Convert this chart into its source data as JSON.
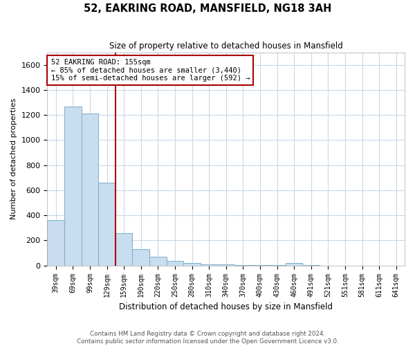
{
  "title": "52, EAKRING ROAD, MANSFIELD, NG18 3AH",
  "subtitle": "Size of property relative to detached houses in Mansfield",
  "xlabel": "Distribution of detached houses by size in Mansfield",
  "ylabel": "Number of detached properties",
  "footer_line1": "Contains HM Land Registry data © Crown copyright and database right 2024.",
  "footer_line2": "Contains public sector information licensed under the Open Government Licence v3.0.",
  "categories": [
    "39sqm",
    "69sqm",
    "99sqm",
    "129sqm",
    "159sqm",
    "190sqm",
    "220sqm",
    "250sqm",
    "280sqm",
    "310sqm",
    "340sqm",
    "370sqm",
    "400sqm",
    "430sqm",
    "460sqm",
    "491sqm",
    "521sqm",
    "551sqm",
    "581sqm",
    "611sqm",
    "641sqm"
  ],
  "values": [
    360,
    1265,
    1210,
    660,
    255,
    130,
    70,
    38,
    20,
    8,
    10,
    5,
    3,
    2,
    20,
    2,
    1,
    1,
    1,
    1,
    1
  ],
  "bar_color": "#c8ddef",
  "bar_edge_color": "#7aafc8",
  "marker_label": "52 EAKRING ROAD: 155sqm",
  "marker_sublabel1": "← 85% of detached houses are smaller (3,440)",
  "marker_sublabel2": "15% of semi-detached houses are larger (592) →",
  "marker_color": "#aa0000",
  "annotation_box_color": "#aa0000",
  "ylim": [
    0,
    1700
  ],
  "background_color": "#ffffff",
  "grid_color": "#c8d8e8"
}
